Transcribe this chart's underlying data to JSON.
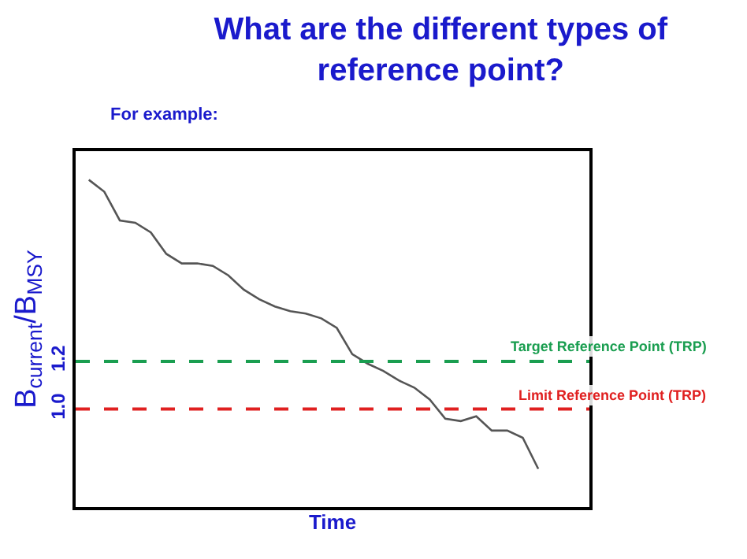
{
  "chart_data": {
    "type": "line",
    "title": "What are the different types of reference point?",
    "subtitle": "For example:",
    "xlabel": "Time",
    "ylabel": "B$_{current}$/B$_{MSY}$",
    "categories": [
      null,
      null,
      null,
      null,
      null,
      null,
      null,
      null,
      null,
      null,
      null,
      null,
      null,
      null,
      null,
      null,
      null,
      null,
      null,
      null,
      null,
      null,
      null,
      null,
      null,
      null,
      null,
      null,
      null,
      null
    ],
    "series": [
      {
        "color": "#555555",
        "values": [
          1.96,
          1.91,
          1.79,
          1.78,
          1.74,
          1.65,
          1.61,
          1.61,
          1.6,
          1.56,
          1.5,
          1.46,
          1.43,
          1.41,
          1.4,
          1.38,
          1.34,
          1.23,
          1.19,
          1.16,
          1.12,
          1.09,
          1.04,
          0.96,
          0.95,
          0.97,
          0.91,
          0.91,
          0.88,
          0.75
        ]
      }
    ],
    "ylim": [
      0.59,
      2.08
    ],
    "yticks": [
      {
        "value": 1.0,
        "label": "1.0"
      },
      {
        "value": 1.2,
        "label": "1.2"
      }
    ],
    "tick_labels": "y",
    "grid": false,
    "marker": "none",
    "line_style": "solid",
    "ref_lines": [
      {
        "axis": "y",
        "value": 1.2,
        "label": "Target Reference Point (TRP)",
        "color": "#1a9e50",
        "line_style": "dashed"
      },
      {
        "axis": "y",
        "value": 1.0,
        "label": "Limit Reference Point (TRP)",
        "color": "#e02020",
        "line_style": "dashed"
      }
    ]
  }
}
